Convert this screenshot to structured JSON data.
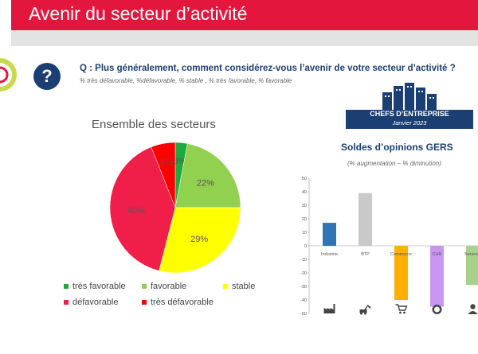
{
  "header": {
    "title": "Avenir du secteur d’activité"
  },
  "question": {
    "icon": "?",
    "text": "Q :  Plus généralement, comment considérez-vous l’avenir de votre secteur d’activité ?",
    "subtitle": "% très défavorable, %défavorable, % stable , % très favorable, % favorable"
  },
  "logo": {
    "line1": "CHEFS D’ENTREPRISE",
    "line2": "Janvier 2023"
  },
  "chart_data": [
    {
      "type": "pie",
      "title": "Ensemble des secteurs",
      "slices": [
        {
          "name": "très favorable",
          "value": 3,
          "label": "3%",
          "color": "#1fa83c"
        },
        {
          "name": "favorable",
          "value": 22,
          "label": "22%",
          "color": "#92d050"
        },
        {
          "name": "stable",
          "value": 29,
          "label": "29%",
          "color": "#ffff00"
        },
        {
          "name": "défavorable",
          "value": 40,
          "label": "40%",
          "color": "#ef1f4a"
        },
        {
          "name": "très défavorable",
          "value": 6,
          "label": "6%",
          "color": "#ff0000"
        }
      ],
      "legend_position": "bottom"
    },
    {
      "type": "bar",
      "title": "Soldes d’opinions GERS",
      "subtitle": "(% augmentation – % diminution)",
      "categories": [
        "Industrie",
        "BTP",
        "Commerce",
        "CHR",
        "Services"
      ],
      "values": [
        17,
        39,
        -40,
        -45,
        -29
      ],
      "colors": [
        "#2e75b6",
        "#c9c9c9",
        "#ffb000",
        "#c895f0",
        "#a9d18e"
      ],
      "category_icons": [
        "factory-icon",
        "excavator-icon",
        "shopping-cart-icon",
        "dining-plate-icon",
        "person-icon"
      ],
      "ylim": [
        -50,
        50
      ],
      "yticks": [
        50,
        40,
        30,
        20,
        10,
        0,
        -10,
        -20,
        -30,
        -40,
        -50
      ],
      "grid": false
    }
  ]
}
